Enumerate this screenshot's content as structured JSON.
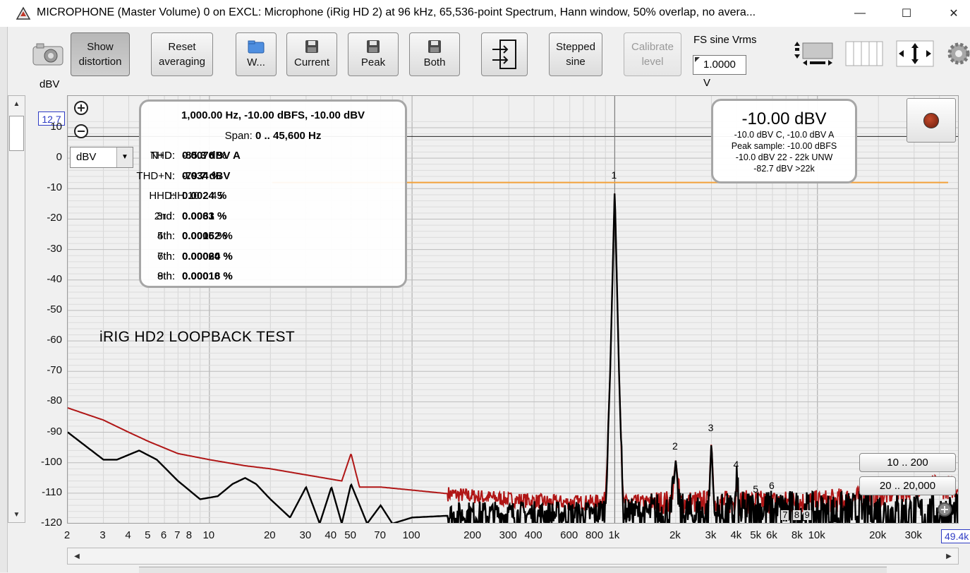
{
  "window": {
    "title": "MICROPHONE (Master Volume) 0 on EXCL: Microphone (iRig HD 2) at 96 kHz, 65,536-point Spectrum, Hann window, 50% overlap, no avera...",
    "minimize_label": "—",
    "maximize_label": "☐",
    "close_label": "✕"
  },
  "toolbar": {
    "show_distortion": [
      "Show",
      "distortion"
    ],
    "reset_averaging": [
      "Reset",
      "averaging"
    ],
    "w_label": "W...",
    "current_label": "Current",
    "peak_label": "Peak",
    "both_label": "Both",
    "stepped_sine": [
      "Stepped",
      "sine"
    ],
    "calibrate_level": [
      "Calibrate",
      "level"
    ],
    "fs_sine_label": "FS sine Vrms",
    "fs_sine_value": "1.0000 V"
  },
  "axis": {
    "y_unit_label": "dBV",
    "y_max": "12.7",
    "x_max": "49.4k",
    "unit_select": "dBV",
    "y_ticks": [
      "10",
      "0",
      "-10",
      "-20",
      "-30",
      "-40",
      "-50",
      "-60",
      "-70",
      "-80",
      "-90",
      "-100",
      "-110",
      "-120"
    ],
    "x_ticks": [
      "2",
      "3",
      "4",
      "5",
      "6",
      "7",
      "8",
      "10",
      "20",
      "30",
      "40",
      "50",
      "70",
      "100",
      "200",
      "300",
      "400",
      "600",
      "800",
      "1k",
      "2k",
      "3k",
      "4k",
      "5k",
      "6k",
      "8k",
      "10k",
      "20k",
      "30k"
    ]
  },
  "annotation": "iRIG HD2 LOOPBACK TEST",
  "stats": {
    "header": "1,000.00 Hz, -10.00 dBFS, -10.00 dBV",
    "span_label": "Span:",
    "span_value": "0 .. 45,600 Hz",
    "nd_label": "N+D:",
    "nd_value": "-85.3 dBV A",
    "n_label": "N:",
    "n_value": "-79.7 dBV",
    "hh_label": "HH 10 .. 45",
    "thd_label": "THD:",
    "thd_value": "0.0076 %",
    "thdn_label": "THD+N:",
    "thdn_value": "0.034 %",
    "hhd_label": "HHD:",
    "hhd_value": "0.0024 %",
    "h2_label": "2nd:",
    "h2_value": "0.0031 %",
    "h3_label": "3rd:",
    "h3_value": "0.0063 %",
    "h4_label": "4th:",
    "h4_value": "0.0015 %",
    "h5_label": "5th:",
    "h5_value": "0.00062 %",
    "h6_label": "6th:",
    "h6_value": "0.00064 %",
    "h7_label": "7th:",
    "h7_value": "0.00020 %",
    "h8_label": "8th:",
    "h8_value": "0.00016 %",
    "h9_label": "9th:",
    "h9_value": "0.00018 %"
  },
  "level": {
    "value": "-10.00 dBV",
    "line1": "-10.0 dBV C, -10.0 dBV A",
    "line2": "Peak sample: -10.00 dBFS",
    "line3": "-10.0 dBV 22 - 22k UNW",
    "line4": "-82.7 dBV >22k"
  },
  "range_buttons": [
    "10 .. 200",
    "20 .. 20,000"
  ],
  "peak_labels": [
    "1",
    "2",
    "3",
    "4",
    "5",
    "6",
    "7",
    "8",
    "9"
  ],
  "colors": {
    "current_trace": "#000000",
    "peak_trace": "#b01616",
    "reference_line": "#f2a13a",
    "axis_limit": "#2f3cc4"
  },
  "chart_data": {
    "type": "line",
    "x_scale": "log",
    "xlim": [
      2,
      49400
    ],
    "ylim": [
      -120,
      12.7
    ],
    "ylabel": "dBV",
    "reference_level_dbv": -8,
    "series": [
      {
        "name": "Current",
        "points": [
          [
            2,
            -90
          ],
          [
            3,
            -99
          ],
          [
            3.5,
            -99
          ],
          [
            4.5,
            -96
          ],
          [
            5.5,
            -99
          ],
          [
            7,
            -106
          ],
          [
            9,
            -112
          ],
          [
            11,
            -111
          ],
          [
            13,
            -107
          ],
          [
            15,
            -105
          ],
          [
            17,
            -107
          ],
          [
            20,
            -112
          ],
          [
            25,
            -118
          ],
          [
            30,
            -108
          ],
          [
            35,
            -120
          ],
          [
            40,
            -108
          ],
          [
            45,
            -120
          ],
          [
            50,
            -107
          ],
          [
            60,
            -120
          ],
          [
            70,
            -114
          ],
          [
            80,
            -120
          ],
          [
            100,
            -118
          ],
          [
            200,
            -117
          ],
          [
            300,
            -117
          ],
          [
            500,
            -117
          ],
          [
            800,
            -117
          ],
          [
            900,
            -115
          ],
          [
            950,
            -70
          ],
          [
            1000,
            -10
          ],
          [
            1050,
            -70
          ],
          [
            1100,
            -116
          ],
          [
            1900,
            -117
          ],
          [
            2000,
            -99
          ],
          [
            2100,
            -117
          ],
          [
            2900,
            -117
          ],
          [
            3000,
            -93
          ],
          [
            3100,
            -117
          ],
          [
            3900,
            -117
          ],
          [
            4000,
            -105
          ],
          [
            4100,
            -117
          ],
          [
            5000,
            -115
          ],
          [
            6000,
            -116
          ],
          [
            8000,
            -116
          ],
          [
            10000,
            -117
          ],
          [
            20000,
            -116
          ],
          [
            30000,
            -117
          ],
          [
            49400,
            -117
          ]
        ]
      },
      {
        "name": "Peak",
        "points": [
          [
            2,
            -82
          ],
          [
            3,
            -86
          ],
          [
            4,
            -90
          ],
          [
            5,
            -93
          ],
          [
            7,
            -97
          ],
          [
            10,
            -99
          ],
          [
            15,
            -101
          ],
          [
            20,
            -102
          ],
          [
            30,
            -104
          ],
          [
            45,
            -106
          ],
          [
            50,
            -97
          ],
          [
            55,
            -108
          ],
          [
            70,
            -108
          ],
          [
            100,
            -109
          ],
          [
            200,
            -111
          ],
          [
            300,
            -112
          ],
          [
            500,
            -113
          ],
          [
            800,
            -113
          ],
          [
            900,
            -112
          ],
          [
            950,
            -70
          ],
          [
            1000,
            -10
          ],
          [
            1050,
            -70
          ],
          [
            1100,
            -113
          ],
          [
            1900,
            -113
          ],
          [
            2000,
            -99
          ],
          [
            2100,
            -113
          ],
          [
            2900,
            -113
          ],
          [
            3000,
            -93
          ],
          [
            3100,
            -113
          ],
          [
            3900,
            -113
          ],
          [
            4000,
            -105
          ],
          [
            4100,
            -113
          ],
          [
            5000,
            -113
          ],
          [
            6000,
            -113
          ],
          [
            10000,
            -113
          ],
          [
            20000,
            -111
          ],
          [
            30000,
            -108
          ],
          [
            49400,
            -108
          ]
        ]
      }
    ],
    "peaks": [
      {
        "label": "1",
        "x": 1000,
        "y": -10
      },
      {
        "label": "2",
        "x": 2000,
        "y": -99
      },
      {
        "label": "3",
        "x": 3000,
        "y": -93
      },
      {
        "label": "4",
        "x": 4000,
        "y": -105
      },
      {
        "label": "5",
        "x": 5000,
        "y": -113
      },
      {
        "label": "6",
        "x": 6000,
        "y": -112
      },
      {
        "label": "7",
        "x": 7000,
        "y": -117
      },
      {
        "label": "8",
        "x": 8000,
        "y": -117
      },
      {
        "label": "9",
        "x": 9000,
        "y": -116
      }
    ]
  }
}
